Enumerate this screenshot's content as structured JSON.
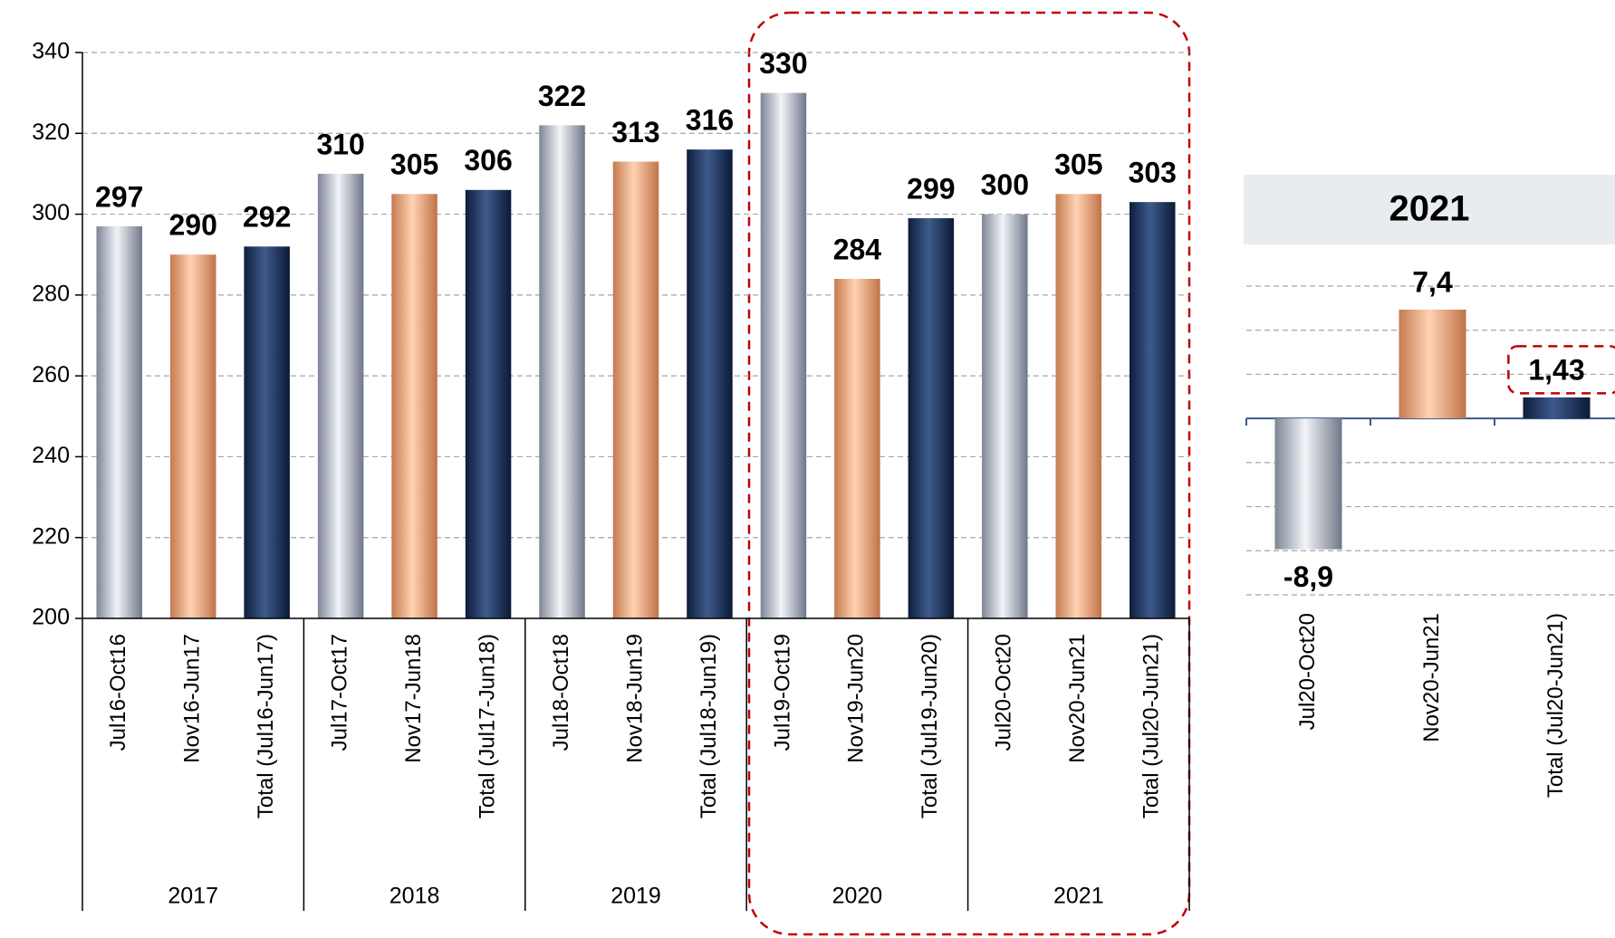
{
  "chart_data": [
    {
      "type": "bar",
      "categories": [
        "Jul16-Oct16",
        "Nov16-Jun17",
        "Total (Jul16-Jun17)",
        "Jul17-Oct17",
        "Nov17-Jun18",
        "Total (Jul17-Jun18)",
        "Jul18-Oct18",
        "Nov18-Jun19",
        "Total (Jul18-Jun19)",
        "Jul19-Oct19",
        "Nov19-Jun20",
        "Total (Jul19-Jun20)",
        "Jul20-Oct20",
        "Nov20-Jun21",
        "Total (Jul20-Jun21)"
      ],
      "groups": [
        "2017",
        "2018",
        "2019",
        "2020",
        "2021"
      ],
      "values": [
        297,
        290,
        292,
        310,
        305,
        306,
        322,
        313,
        316,
        330,
        284,
        299,
        300,
        305,
        303
      ],
      "colors": [
        "#c3c8d2",
        "#f2a679",
        "#1c3560"
      ],
      "ylim": [
        200,
        340
      ],
      "yticks": [
        200,
        220,
        240,
        260,
        280,
        300,
        320,
        340
      ],
      "grid": true
    },
    {
      "type": "bar",
      "title": "2021",
      "categories": [
        "Jul20-Oct20",
        "Nov20-Jun21",
        "Total (Jul20-Jun21)"
      ],
      "values": [
        -8.9,
        7.4,
        1.43
      ],
      "value_labels": [
        "-8,9",
        "7,4",
        "1,43"
      ],
      "colors": [
        "#c3c8d2",
        "#f2a679",
        "#1c3560"
      ],
      "ylim": [
        -12,
        9
      ],
      "yticks": [
        -12,
        -9,
        -6,
        -3,
        0,
        3,
        6,
        9
      ],
      "grid": true
    }
  ]
}
